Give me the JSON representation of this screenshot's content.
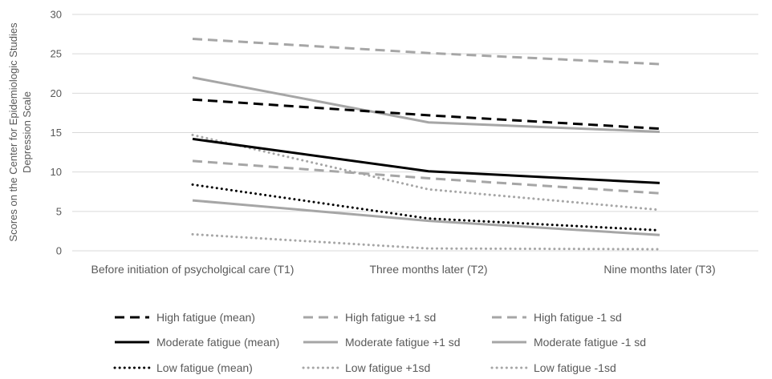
{
  "chart_data": {
    "type": "line",
    "title": "",
    "xlabel": "",
    "ylabel_lines": [
      "Scores on the Center for Epidemiologic Studies",
      "Depression Scale"
    ],
    "ylim": [
      0,
      30
    ],
    "yticks": [
      0,
      5,
      10,
      15,
      20,
      25,
      30
    ],
    "grid": "horizontal",
    "legend_position": "bottom",
    "categories": [
      "Before initiation of psycholgical care (T1)",
      "Three months later (T2)",
      "Nine months later (T3)"
    ],
    "series": [
      {
        "name": "High fatigue (mean)",
        "values": [
          19.2,
          17.2,
          15.5
        ],
        "color": "#000000",
        "style": "dashed"
      },
      {
        "name": "High fatigue +1 sd",
        "values": [
          26.9,
          25.1,
          23.7
        ],
        "color": "#a6a6a6",
        "style": "dashed"
      },
      {
        "name": "High fatigue -1 sd",
        "values": [
          11.4,
          9.2,
          7.3
        ],
        "color": "#a6a6a6",
        "style": "dashed"
      },
      {
        "name": "Moderate fatigue (mean)",
        "values": [
          14.2,
          10.1,
          8.6
        ],
        "color": "#000000",
        "style": "solid"
      },
      {
        "name": "Moderate fatigue +1 sd",
        "values": [
          22.0,
          16.3,
          15.1
        ],
        "color": "#a6a6a6",
        "style": "solid"
      },
      {
        "name": "Moderate fatigue -1 sd",
        "values": [
          6.4,
          3.8,
          2.0
        ],
        "color": "#a6a6a6",
        "style": "solid"
      },
      {
        "name": "Low fatigue (mean)",
        "values": [
          8.4,
          4.1,
          2.6
        ],
        "color": "#000000",
        "style": "dotted"
      },
      {
        "name": "Low fatigue +1sd",
        "values": [
          14.7,
          7.8,
          5.2
        ],
        "color": "#a6a6a6",
        "style": "dotted"
      },
      {
        "name": "Low fatigue -1sd",
        "values": [
          2.1,
          0.3,
          0.2
        ],
        "color": "#a6a6a6",
        "style": "dotted"
      }
    ]
  }
}
